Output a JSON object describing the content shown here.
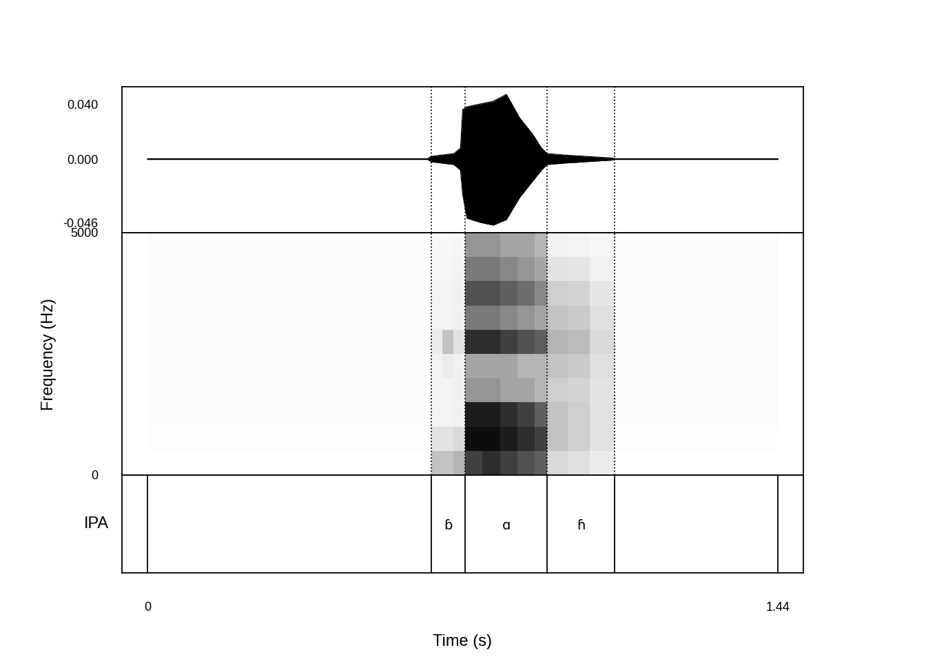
{
  "chart_data": {
    "type": "waveform_spectrogram",
    "xlabel": "Time (s)",
    "xlim": [
      -0.058,
      1.498
    ],
    "xticks": [
      0,
      1.44
    ],
    "waveform": {
      "x": [
        0,
        0.64,
        0.648,
        0.7,
        0.715,
        0.72,
        0.73,
        0.76,
        0.79,
        0.82,
        0.85,
        0.88,
        0.9,
        0.913,
        0.95,
        1.0,
        1.06,
        1.07,
        1.44
      ],
      "upper": [
        0.0003,
        0.0003,
        0.002,
        0.004,
        0.008,
        0.036,
        0.038,
        0.04,
        0.042,
        0.047,
        0.03,
        0.018,
        0.008,
        0.004,
        0.003,
        0.002,
        0.0008,
        0.0003,
        0.0003
      ],
      "lower": [
        -0.0003,
        -0.0003,
        -0.002,
        -0.004,
        -0.008,
        -0.026,
        -0.043,
        -0.046,
        -0.048,
        -0.044,
        -0.028,
        -0.016,
        -0.008,
        -0.004,
        -0.003,
        -0.002,
        -0.0008,
        -0.0003,
        -0.0003
      ],
      "ylim": [
        -0.0535,
        0.0525
      ],
      "yticks": [
        {
          "value": 0.04,
          "label": "0.040"
        },
        {
          "value": 0,
          "label": "0.000"
        },
        {
          "value": -0.046,
          "label": "-0.046"
        }
      ]
    },
    "spectrogram": {
      "ylabel": "Frequency (Hz)",
      "ylim": [
        0,
        5000
      ],
      "yticks": [
        0,
        5000
      ],
      "time_edges": [
        0,
        0.648,
        0.673,
        0.699,
        0.7255,
        0.765,
        0.805,
        0.845,
        0.885,
        0.913,
        0.96,
        1.01,
        1.067,
        1.44
      ],
      "freq_edges": [
        0,
        500,
        1000,
        1500,
        2000,
        2500,
        3000,
        3500,
        4000,
        4500,
        5000
      ],
      "cells": [
        [
          0.0,
          0.35,
          0.35,
          0.4,
          0.8,
          0.85,
          0.8,
          0.75,
          0.7,
          0.25,
          0.22,
          0.15,
          0.0
        ],
        [
          0.02,
          0.2,
          0.2,
          0.25,
          0.95,
          0.95,
          0.9,
          0.85,
          0.8,
          0.35,
          0.3,
          0.2,
          0.02
        ],
        [
          0.03,
          0.1,
          0.1,
          0.12,
          0.9,
          0.9,
          0.85,
          0.8,
          0.7,
          0.35,
          0.3,
          0.2,
          0.03
        ],
        [
          0.03,
          0.1,
          0.1,
          0.12,
          0.5,
          0.5,
          0.45,
          0.45,
          0.4,
          0.3,
          0.28,
          0.2,
          0.03
        ],
        [
          0.03,
          0.1,
          0.15,
          0.12,
          0.45,
          0.45,
          0.45,
          0.4,
          0.4,
          0.35,
          0.32,
          0.22,
          0.03
        ],
        [
          0.03,
          0.15,
          0.35,
          0.2,
          0.85,
          0.85,
          0.8,
          0.75,
          0.7,
          0.4,
          0.38,
          0.25,
          0.03
        ],
        [
          0.03,
          0.1,
          0.1,
          0.12,
          0.6,
          0.6,
          0.55,
          0.5,
          0.45,
          0.35,
          0.32,
          0.22,
          0.03
        ],
        [
          0.03,
          0.1,
          0.1,
          0.12,
          0.75,
          0.75,
          0.7,
          0.65,
          0.55,
          0.3,
          0.28,
          0.18,
          0.03
        ],
        [
          0.03,
          0.08,
          0.08,
          0.1,
          0.6,
          0.6,
          0.55,
          0.5,
          0.45,
          0.2,
          0.18,
          0.12,
          0.03
        ],
        [
          0.03,
          0.06,
          0.06,
          0.08,
          0.5,
          0.5,
          0.45,
          0.45,
          0.4,
          0.12,
          0.1,
          0.08,
          0.03
        ]
      ]
    },
    "tier": {
      "name": "IPA",
      "start": 0,
      "end": 1.44,
      "segments": [
        {
          "label": "ɓ",
          "start": 0.648,
          "end": 0.7255
        },
        {
          "label": "ɑ",
          "start": 0.7255,
          "end": 0.913
        },
        {
          "label": "ɦ",
          "start": 0.913,
          "end": 1.067
        }
      ]
    }
  }
}
